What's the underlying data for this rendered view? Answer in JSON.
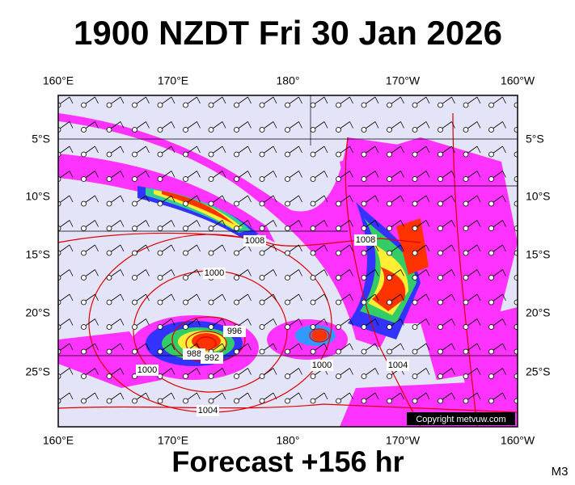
{
  "header": {
    "title": "1900 NZDT Fri 30 Jan 2026"
  },
  "map": {
    "top_lon_labels": [
      "160°E",
      "170°E",
      "180°",
      "170°W",
      "160°W"
    ],
    "bottom_lon_labels": [
      "160°E",
      "170°E",
      "180°",
      "170°W",
      "160°W"
    ],
    "left_lat_labels": [
      "5°S",
      "10°S",
      "15°S",
      "20°S",
      "25°S"
    ],
    "right_lat_labels": [
      "5°S",
      "10°S",
      "15°S",
      "20°S",
      "25°S"
    ],
    "isobar_labels": [
      "1008",
      "1008",
      "1000",
      "996",
      "988",
      "992",
      "1000",
      "1000",
      "1004",
      "1004"
    ],
    "copyright": "Copyright metvuw.com"
  },
  "footer": {
    "forecast": "Forecast +156 hr",
    "model": "M3"
  }
}
